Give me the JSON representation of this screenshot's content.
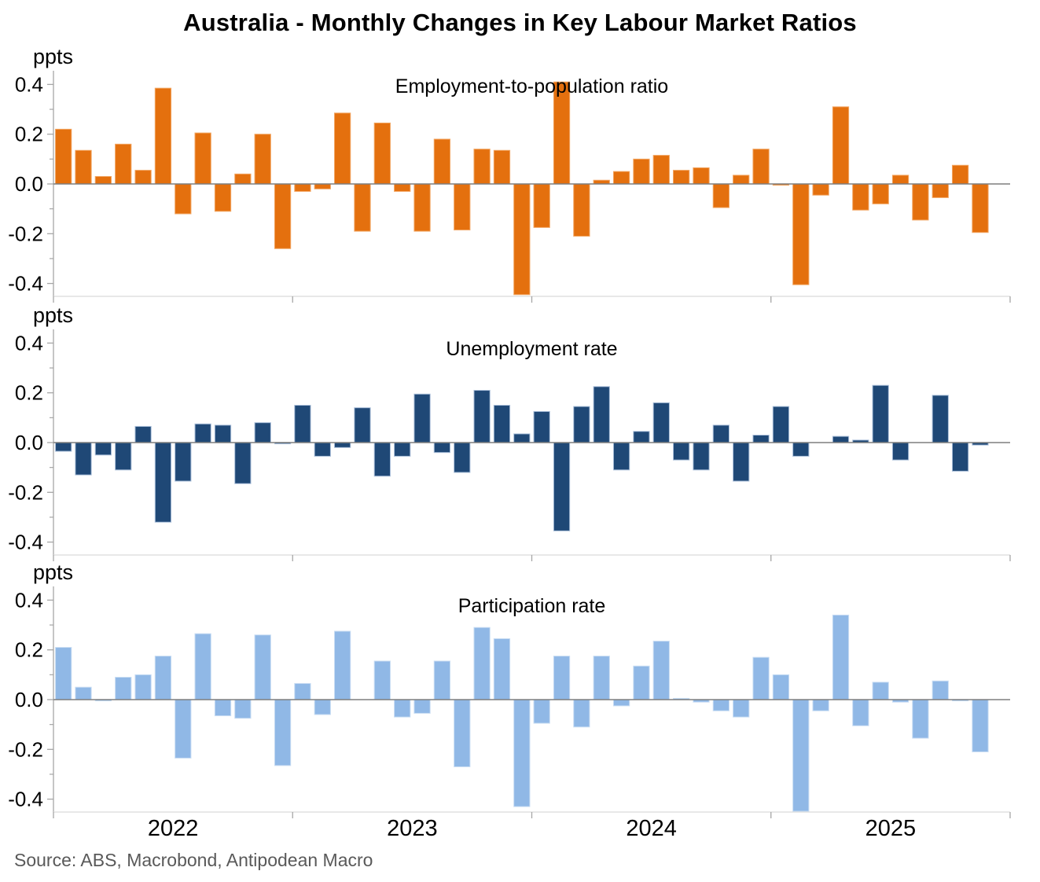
{
  "title": "Australia - Monthly Changes in Key Labour Market Ratios",
  "source": "Source: ABS, Macrobond, Antipodean Macro",
  "axis": {
    "unit_label": "ppts",
    "y_ticks": [
      "0.4",
      "0.2",
      "0.0",
      "-0.2",
      "-0.4"
    ],
    "y_tick_values": [
      0.4,
      0.2,
      0.0,
      -0.2,
      -0.4
    ],
    "ylim": [
      -0.455,
      0.455
    ],
    "x_year_labels": [
      "2022",
      "2023",
      "2024",
      "2025"
    ],
    "grid": "off",
    "colors": {
      "axis_line": "#A6A6A6",
      "zero_line": "#7F7F7F",
      "panel_border": "#D9D9D9",
      "text": "#000000",
      "source_text": "#595959"
    }
  },
  "chart_data": {
    "type": "bar",
    "x_unit": "month",
    "x_start": "2022-01",
    "x_end": "2025-11",
    "n_months": 47,
    "panels": [
      {
        "label": "Employment-to-population ratio",
        "color": "#E4700E",
        "edge": "#F2A663",
        "values": [
          0.22,
          0.135,
          0.03,
          0.16,
          0.055,
          0.385,
          -0.12,
          0.205,
          -0.11,
          0.04,
          0.2,
          -0.26,
          -0.03,
          -0.02,
          0.285,
          -0.19,
          0.245,
          -0.03,
          -0.19,
          0.18,
          -0.185,
          0.14,
          0.135,
          -0.445,
          -0.175,
          0.41,
          -0.21,
          0.015,
          0.05,
          0.1,
          0.115,
          0.055,
          0.065,
          -0.095,
          0.035,
          0.14,
          -0.005,
          -0.405,
          -0.045,
          0.31,
          -0.105,
          -0.08,
          0.035,
          -0.145,
          -0.055,
          0.075,
          -0.195
        ]
      },
      {
        "label": "Unemployment rate",
        "color": "#1F4876",
        "edge": "#A9BED9",
        "values": [
          -0.035,
          -0.13,
          -0.05,
          -0.11,
          0.065,
          -0.32,
          -0.155,
          0.075,
          0.07,
          -0.165,
          0.08,
          -0.005,
          0.15,
          -0.055,
          -0.02,
          0.14,
          -0.135,
          -0.055,
          0.195,
          -0.04,
          -0.12,
          0.21,
          0.15,
          0.035,
          0.125,
          -0.355,
          0.145,
          0.225,
          -0.11,
          0.045,
          0.16,
          -0.07,
          -0.11,
          0.07,
          -0.155,
          0.03,
          0.145,
          -0.055,
          0.0,
          0.025,
          0.01,
          0.23,
          -0.07,
          0.0,
          0.19,
          -0.115,
          -0.01
        ]
      },
      {
        "label": "Participation rate",
        "color": "#90B8E6",
        "edge": "#C9DDF3",
        "values": [
          0.21,
          0.05,
          -0.005,
          0.09,
          0.1,
          0.175,
          -0.235,
          0.265,
          -0.065,
          -0.075,
          0.26,
          -0.265,
          0.065,
          -0.06,
          0.275,
          0.0,
          0.155,
          -0.07,
          -0.055,
          0.155,
          -0.27,
          0.29,
          0.245,
          -0.43,
          -0.095,
          0.175,
          -0.11,
          0.175,
          -0.025,
          0.135,
          0.235,
          0.005,
          -0.01,
          -0.045,
          -0.07,
          0.17,
          0.1,
          -0.46,
          -0.045,
          0.34,
          -0.105,
          0.07,
          -0.01,
          -0.155,
          0.075,
          -0.005,
          -0.21
        ]
      }
    ]
  }
}
